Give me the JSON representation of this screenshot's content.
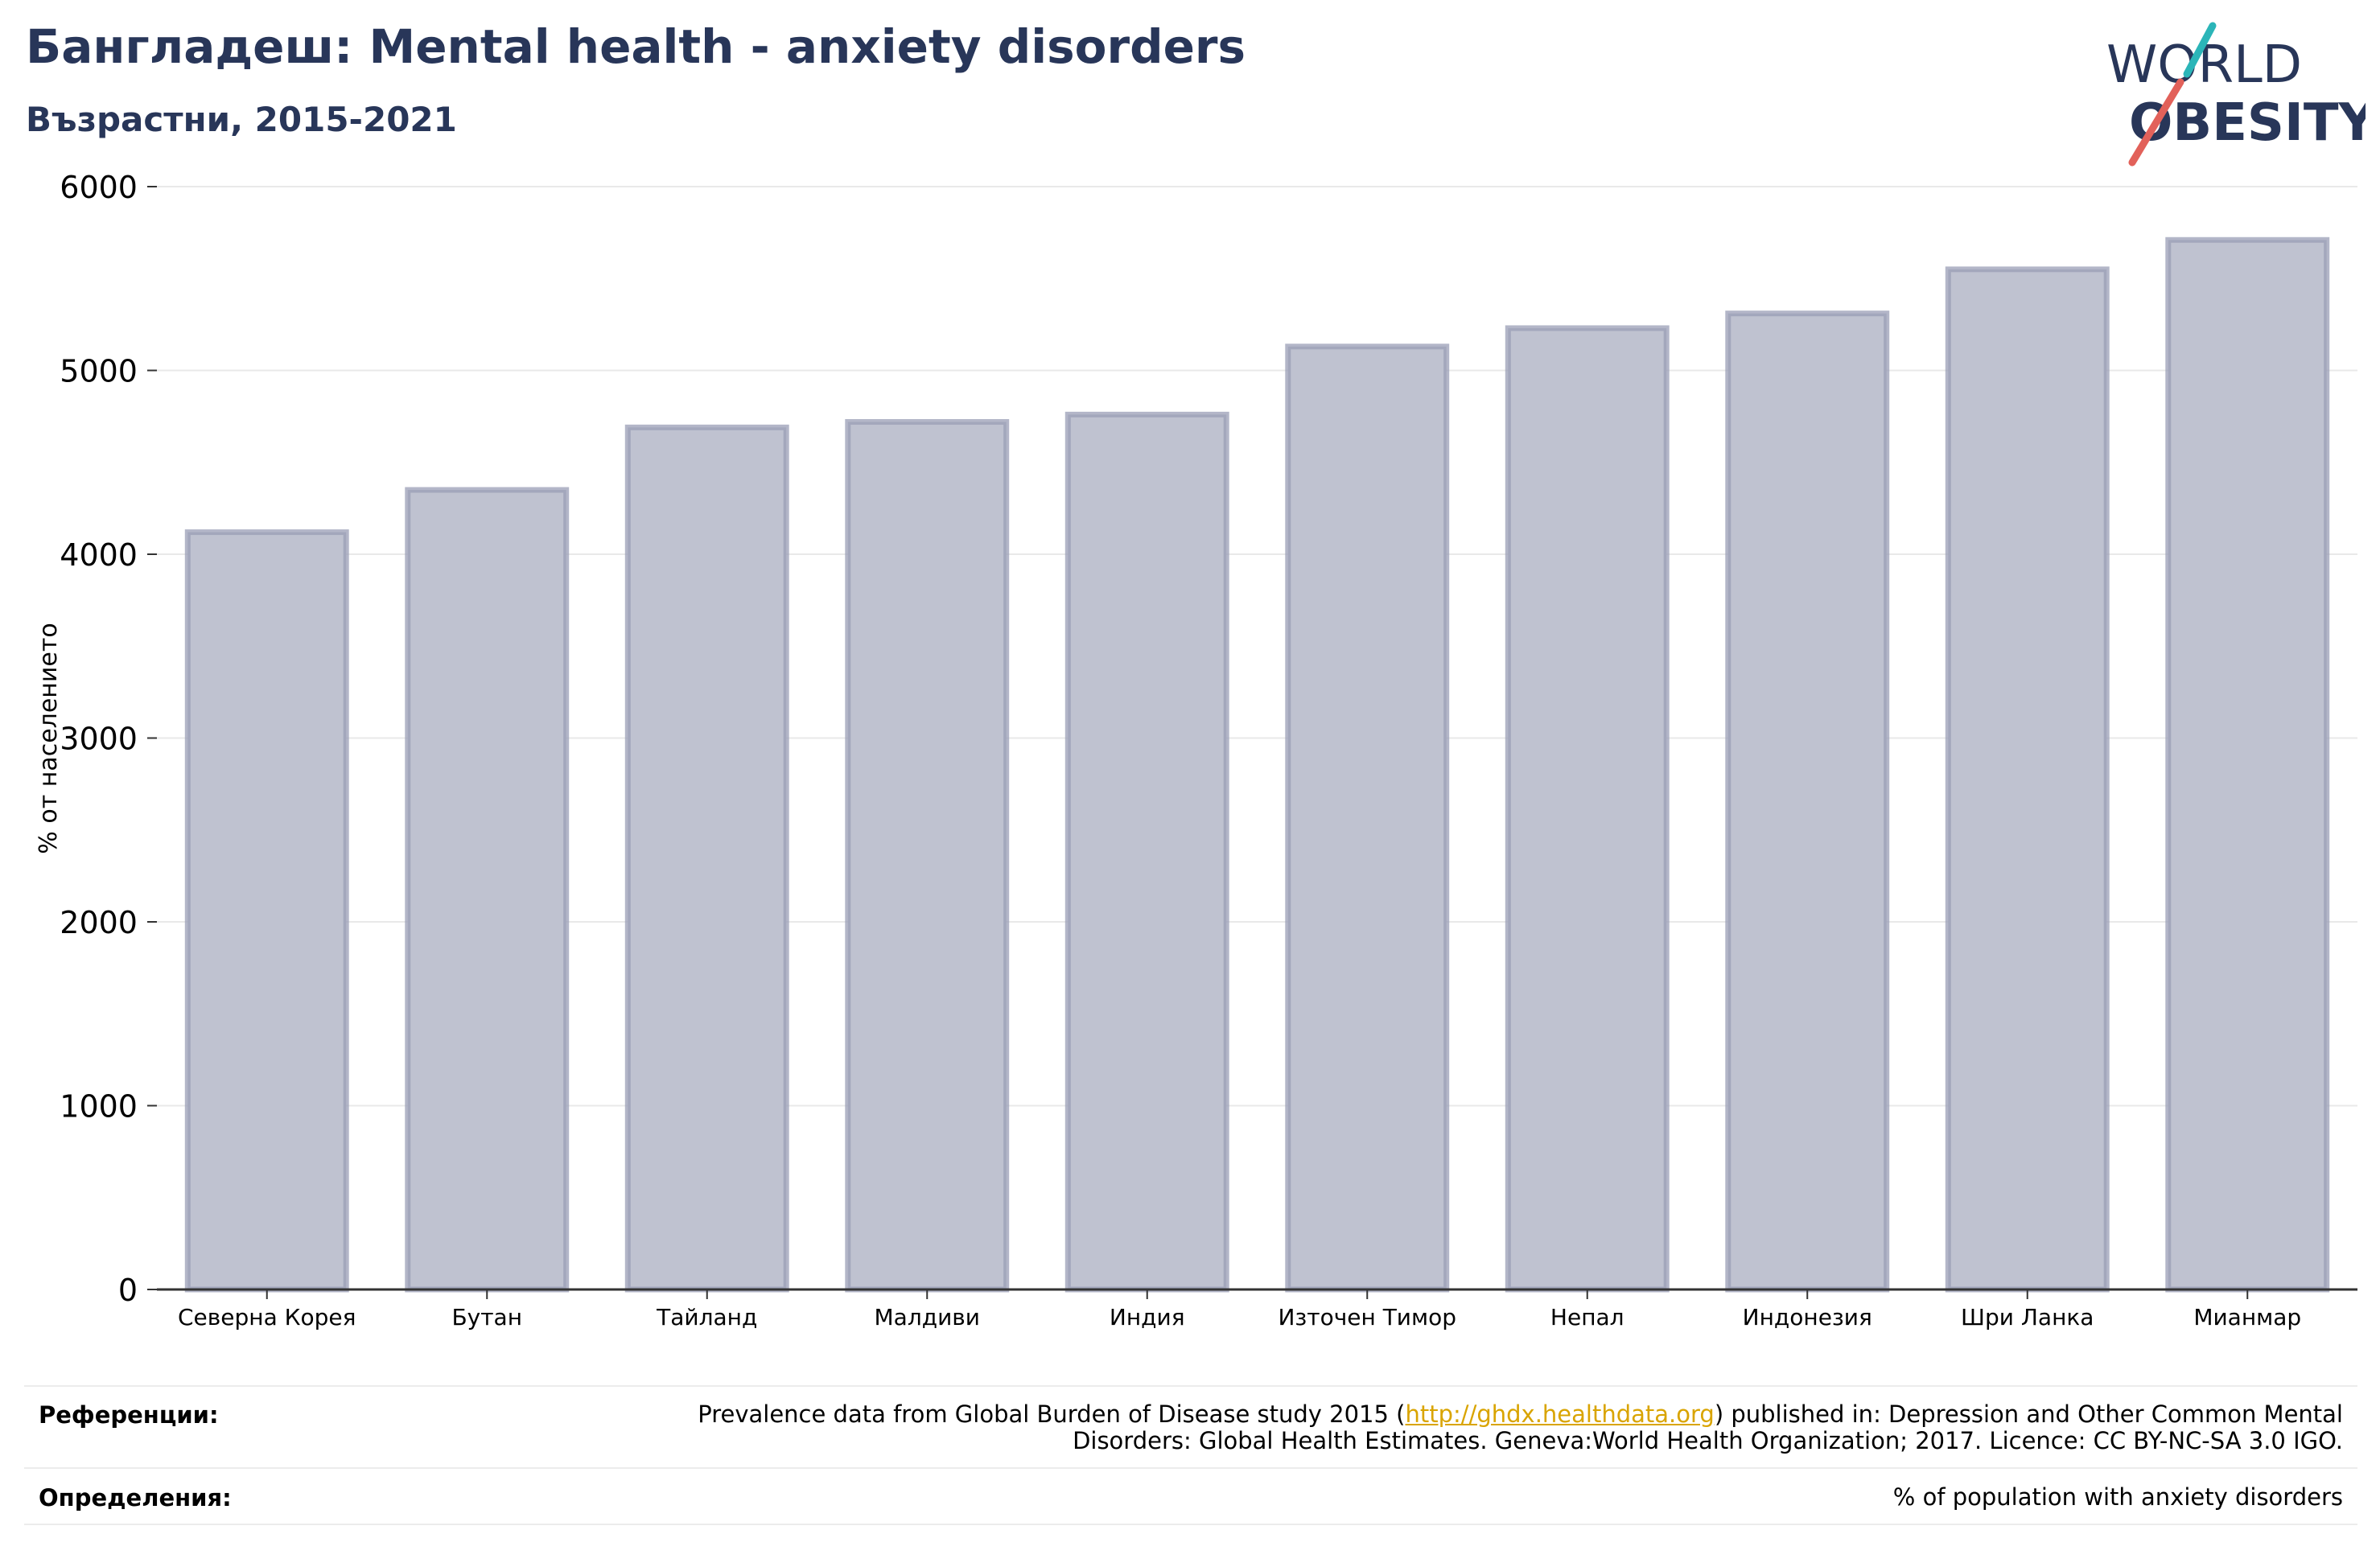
{
  "header": {
    "title": "Бангладеш: Mental health - anxiety disorders",
    "subtitle": "Възрастни, 2015-2021"
  },
  "logo": {
    "line1": "WORLD",
    "line2": "OBESITY"
  },
  "colors": {
    "title": "#283659",
    "bar_fill": "#bfc2d0",
    "bar_stroke": "#9a9db5",
    "grid": "#e9e9e9",
    "axis": "#333333",
    "link": "#d9a400",
    "logo_navy": "#283659",
    "logo_teal": "#2bb5b8",
    "logo_red": "#e2615a"
  },
  "chart_data": {
    "type": "bar",
    "categories": [
      "Северна Корея",
      "Бутан",
      "Тайланд",
      "Малдиви",
      "Индия",
      "Източен Тимор",
      "Непал",
      "Индонезия",
      "Шри Ланка",
      "Мианмар"
    ],
    "values": [
      4120,
      4350,
      4690,
      4720,
      4760,
      5130,
      5230,
      5310,
      5550,
      5710
    ],
    "ylabel": "% от населението",
    "ylim": [
      0,
      6000
    ],
    "yticks": [
      0,
      1000,
      2000,
      3000,
      4000,
      5000,
      6000
    ],
    "grid": true
  },
  "footer": {
    "references_label": "Референции:",
    "references_pre": "Prevalence data from Global Burden of Disease study 2015 (",
    "references_link": "http://ghdx.healthdata.org",
    "references_post": ") published in: Depression and Other Common Mental",
    "references_line2": "Disorders: Global Health Estimates. Geneva:World Health Organization; 2017. Licence: CC BY-NC-SA 3.0 IGO.",
    "definitions_label": "Определения:",
    "definitions_text": "% of population with anxiety disorders"
  }
}
